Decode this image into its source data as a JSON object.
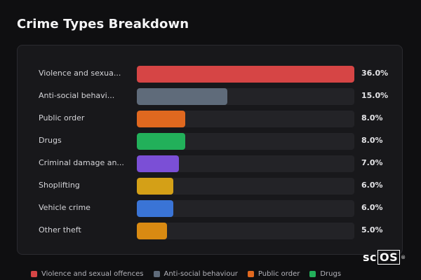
{
  "title": "Crime Types Breakdown",
  "chart_data": {
    "type": "bar",
    "orientation": "horizontal",
    "title": "Crime Types Breakdown",
    "categories": [
      "Violence and sexual offences",
      "Anti-social behaviour",
      "Public order",
      "Drugs",
      "Criminal damage and arson",
      "Shoplifting",
      "Vehicle crime",
      "Other theft"
    ],
    "display_labels": [
      "Violence and sexua...",
      "Anti-social behavi...",
      "Public order",
      "Drugs",
      "Criminal damage an...",
      "Shoplifting",
      "Vehicle crime",
      "Other theft"
    ],
    "values": [
      36.0,
      15.0,
      8.0,
      8.0,
      7.0,
      6.0,
      6.0,
      5.0
    ],
    "value_labels": [
      "36.0%",
      "15.0%",
      "8.0%",
      "8.0%",
      "7.0%",
      "6.0%",
      "6.0%",
      "5.0%"
    ],
    "colors": [
      "#d64545",
      "#5f6b7a",
      "#e0681f",
      "#22b05a",
      "#7b4fd6",
      "#d4a017",
      "#3a74d6",
      "#d98a12"
    ],
    "xlim": [
      0,
      36.0
    ],
    "legend": [
      {
        "label": "Violence and sexual offences",
        "color": "#d64545"
      },
      {
        "label": "Anti-social behaviour",
        "color": "#5f6b7a"
      },
      {
        "label": "Public order",
        "color": "#e0681f"
      },
      {
        "label": "Drugs",
        "color": "#22b05a"
      }
    ],
    "legend_position": "bottom",
    "grid": false
  },
  "logo": {
    "prefix": "sc",
    "boxed": "OS",
    "mark": "®"
  }
}
